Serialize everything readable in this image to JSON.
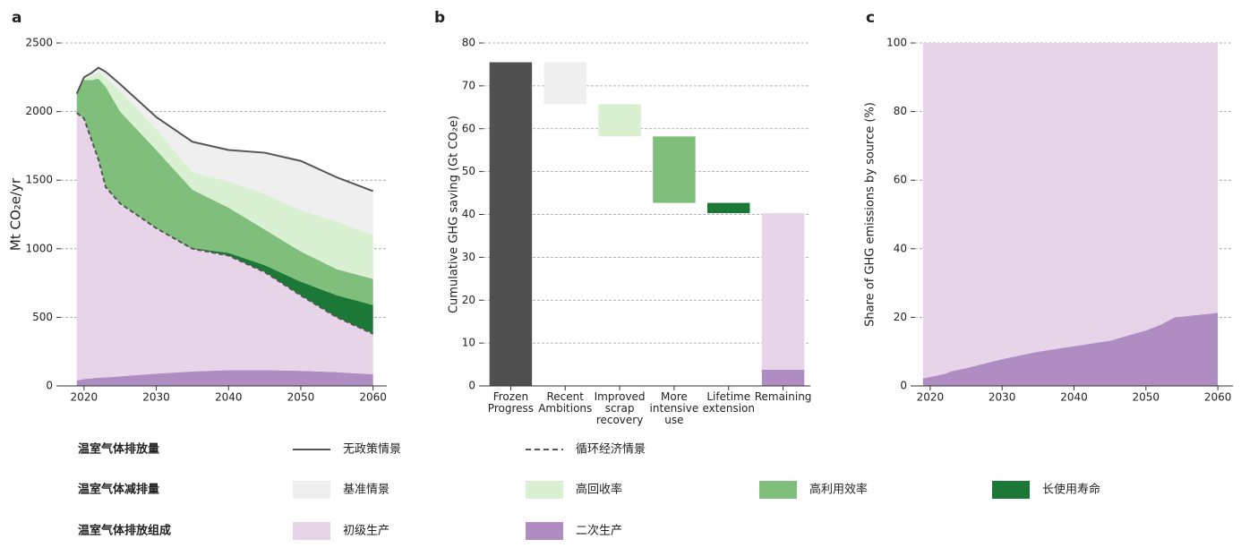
{
  "chart_data": [
    {
      "type": "area",
      "label": "a",
      "y_label": "Mt CO₂e/yr",
      "x": [
        2019,
        2020,
        2021,
        2022,
        2023,
        2025,
        2030,
        2035,
        2040,
        2045,
        2050,
        2055,
        2060
      ],
      "xlim": [
        2016.8,
        2061.9
      ],
      "xticks": [
        2020,
        2030,
        2040,
        2050,
        2060
      ],
      "ylim": [
        0,
        2500
      ],
      "yticks": [
        0,
        500,
        1000,
        1500,
        2000,
        2500
      ],
      "grid": true,
      "legend_groups": [
        "温室气体排放量",
        "温室气体减排量",
        "温室气体排放组成"
      ],
      "series": [
        {
          "name": "无政策情景",
          "kind": "line",
          "style": "solid",
          "color": "#555555",
          "legend_row": 0,
          "values": [
            2130,
            2250,
            2280,
            2320,
            2290,
            2200,
            1960,
            1780,
            1720,
            1700,
            1640,
            1520,
            1420
          ]
        },
        {
          "name": "循环经济情景",
          "kind": "line",
          "style": "dashed",
          "color": "#555555",
          "legend_row": 0,
          "values": [
            1990,
            1950,
            1800,
            1650,
            1450,
            1330,
            1150,
            1000,
            950,
            830,
            660,
            500,
            380
          ]
        },
        {
          "name": "基准情景",
          "kind": "area",
          "color": "#efefef",
          "legend_row": 1,
          "values": [
            0,
            10,
            20,
            30,
            40,
            50,
            90,
            220,
            230,
            300,
            360,
            320,
            320
          ]
        },
        {
          "name": "高回收率",
          "kind": "area",
          "color": "#d9f0d3",
          "legend_row": 1,
          "values": [
            0,
            10,
            30,
            50,
            70,
            150,
            150,
            130,
            190,
            260,
            300,
            350,
            320
          ]
        },
        {
          "name": "高利用效率",
          "kind": "area",
          "color": "#7fbf7b",
          "legend_row": 1,
          "values": [
            140,
            280,
            430,
            590,
            730,
            670,
            570,
            425,
            330,
            260,
            220,
            190,
            190
          ]
        },
        {
          "name": "长使用寿命",
          "kind": "area",
          "color": "#1b7837",
          "legend_row": 1,
          "values": [
            0,
            0,
            0,
            0,
            0,
            0,
            0,
            5,
            20,
            50,
            100,
            160,
            210
          ]
        },
        {
          "name": "初级生产",
          "kind": "area",
          "color": "#e7d4e8",
          "legend_row": 2,
          "values": [
            1950,
            1900,
            1745,
            1590,
            1388,
            1260,
            1060,
            895,
            835,
            715,
            550,
            400,
            295
          ]
        },
        {
          "name": "二次生产",
          "kind": "area",
          "color": "#af8dc3",
          "legend_row": 2,
          "values": [
            40,
            50,
            55,
            60,
            62,
            70,
            90,
            105,
            115,
            115,
            110,
            100,
            85
          ]
        }
      ]
    },
    {
      "type": "waterfall",
      "label": "b",
      "y_label": "Cumulative GHG saving (Gt CO₂e)",
      "categories": [
        "Frozen Progress",
        "Recent Ambitions",
        "Improved scrap recovery",
        "More intensive use",
        "Lifetime extension",
        "Remaining"
      ],
      "values": [
        75.5,
        -9.8,
        -7.5,
        -15.5,
        -2.4,
        null
      ],
      "colors": [
        "#505050",
        "#efefef",
        "#d9f0d3",
        "#7fbf7b",
        "#1b7837",
        null
      ],
      "remaining_stack": [
        3.8,
        36.5
      ],
      "remaining_colors": [
        "#af8dc3",
        "#e7d4e8"
      ],
      "ylim": [
        0,
        80
      ],
      "yticks": [
        0,
        10,
        20,
        30,
        40,
        50,
        60,
        70,
        80
      ],
      "grid": true
    },
    {
      "type": "area",
      "label": "c",
      "y_label": "Share of GHG emissions by source (%)",
      "x": [
        2019,
        2020,
        2022,
        2023,
        2025,
        2030,
        2035,
        2040,
        2045,
        2050,
        2052,
        2054,
        2060
      ],
      "xlim": [
        2017.9,
        2062.1
      ],
      "xticks": [
        2020,
        2030,
        2040,
        2050,
        2060
      ],
      "ylim": [
        0,
        100
      ],
      "yticks": [
        0,
        20,
        40,
        60,
        80,
        100
      ],
      "grid": true,
      "series": [
        {
          "kind": "area",
          "color": "#e7d4e8",
          "values": [
            97.8,
            97.4,
            96.5,
            95.7,
            94.8,
            92.2,
            90,
            88.4,
            86.8,
            83.8,
            82.2,
            80,
            78.7
          ]
        },
        {
          "kind": "area",
          "color": "#af8dc3",
          "values": [
            2.2,
            2.6,
            3.5,
            4.3,
            5.2,
            7.8,
            10,
            11.6,
            13.2,
            16.2,
            17.8,
            20,
            21.3
          ]
        }
      ]
    }
  ]
}
